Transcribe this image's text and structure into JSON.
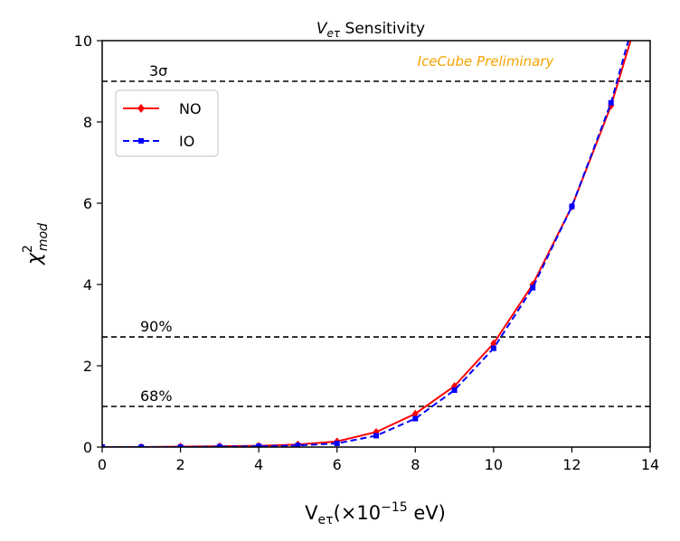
{
  "chart_data": {
    "type": "line",
    "title": "V_{eτ} Sensitivity",
    "title_parts": {
      "main": "V",
      "sub": "eτ",
      "rest": " Sensitivity"
    },
    "xlabel": "Veτ(×10⁻¹⁵ eV)",
    "xlabel_parts": {
      "pre": "V",
      "sub": "eτ",
      "mid": "(×10",
      "sup": "−15",
      "post": " eV)"
    },
    "ylabel": "χ²_mod",
    "ylabel_parts": {
      "main": "χ",
      "sup": "2",
      "sub": "mod"
    },
    "xlim": [
      0,
      14
    ],
    "ylim": [
      0,
      10
    ],
    "x_ticks": [
      0,
      2,
      4,
      6,
      8,
      10,
      12,
      14
    ],
    "x_tick_labels": [
      "0",
      "2",
      "4",
      "6",
      "8",
      "10",
      "12",
      "14"
    ],
    "y_ticks": [
      0,
      2,
      4,
      6,
      8,
      10
    ],
    "y_tick_labels": [
      "0",
      "2",
      "4",
      "6",
      "8",
      "10"
    ],
    "grid": false,
    "watermark": "IceCube Preliminary",
    "series": [
      {
        "name": "NO",
        "color": "#ff0000",
        "linestyle": "solid",
        "marker": "diamond",
        "x": [
          0,
          1,
          2,
          3,
          4,
          5,
          6,
          7,
          8,
          9,
          10,
          11,
          12,
          13,
          13.5
        ],
        "y": [
          0.0,
          0.0,
          0.01,
          0.02,
          0.03,
          0.06,
          0.14,
          0.37,
          0.82,
          1.5,
          2.55,
          4.0,
          5.92,
          8.4,
          10.0
        ]
      },
      {
        "name": "IO",
        "color": "#0000ff",
        "linestyle": "dashed",
        "marker": "square",
        "x": [
          0,
          1,
          2,
          3,
          4,
          5,
          6,
          7,
          8,
          9,
          10,
          11,
          12,
          13,
          13.5
        ],
        "y": [
          0.0,
          0.0,
          0.0,
          0.01,
          0.02,
          0.04,
          0.09,
          0.28,
          0.7,
          1.4,
          2.43,
          3.92,
          5.92,
          8.47,
          10.2
        ]
      }
    ],
    "reference_lines": [
      {
        "y": 9.0,
        "label": "3σ",
        "style": "dashed",
        "color": "#000000"
      },
      {
        "y": 2.71,
        "label": "90%",
        "style": "dashed",
        "color": "#000000"
      },
      {
        "y": 1.0,
        "label": "68%",
        "style": "dashed",
        "color": "#000000"
      }
    ],
    "legend": {
      "position": "upper-left",
      "entries": [
        "NO",
        "IO"
      ]
    },
    "watermark_color": "#f5a300"
  }
}
